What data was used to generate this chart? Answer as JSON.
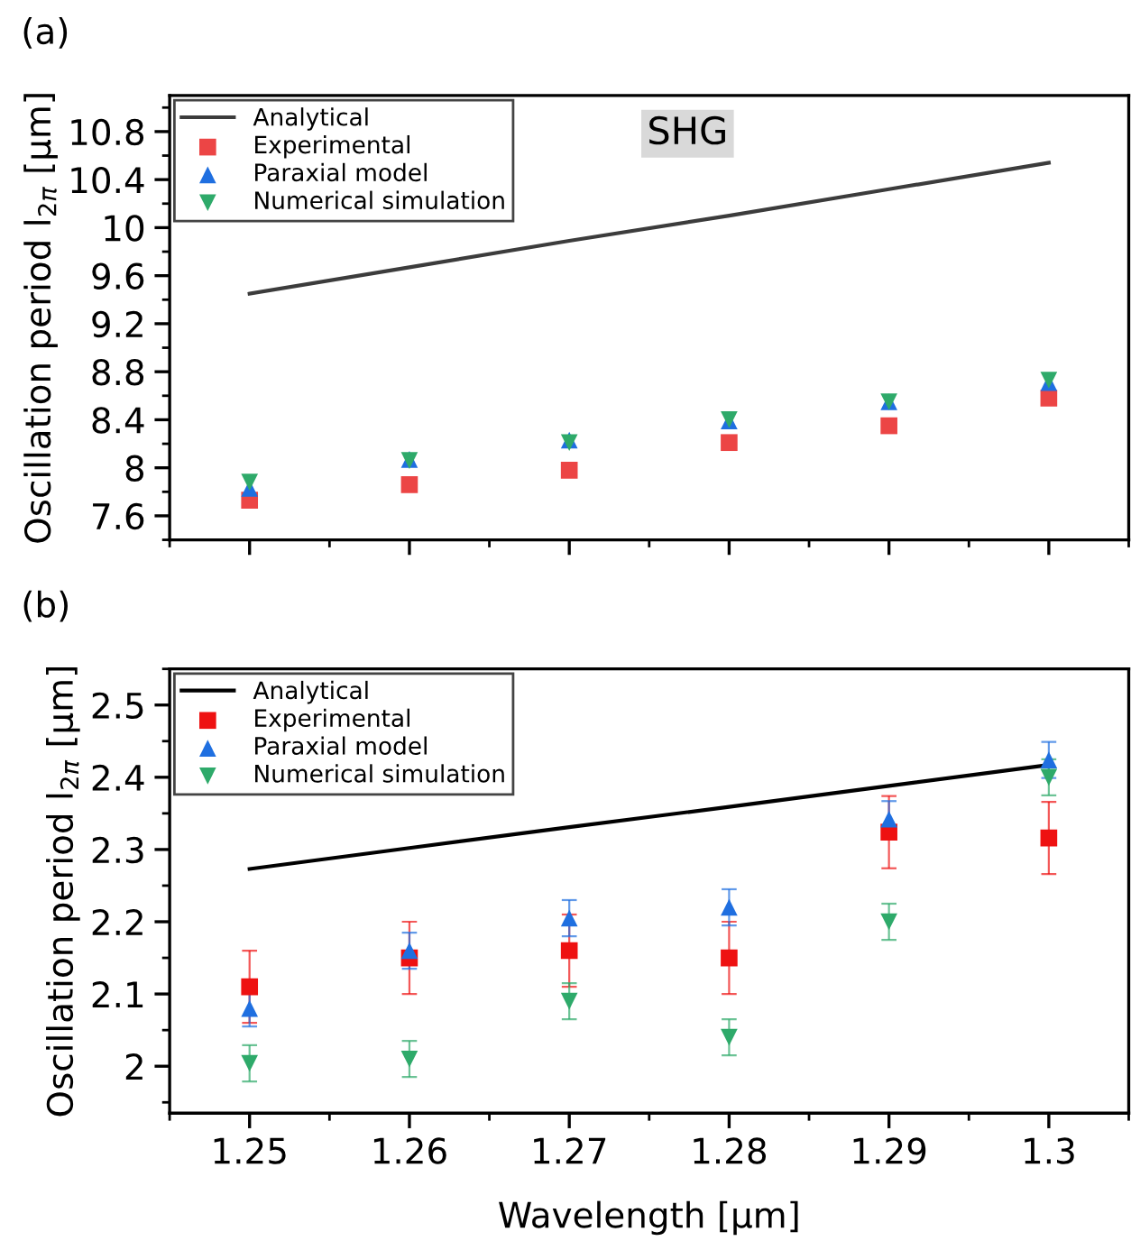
{
  "chart_data": [
    {
      "type": "scatter",
      "title": "(a)",
      "ylabel": "Oscillation period l$_{2π}$ [μm]",
      "annotations": [
        "SHG"
      ],
      "x": [
        1.25,
        1.26,
        1.27,
        1.28,
        1.29,
        1.3
      ],
      "series": [
        {
          "name": "Analytical",
          "type": "line",
          "color": "#3c3c3c",
          "values": [
            9.45,
            9.67,
            9.89,
            10.1,
            10.32,
            10.54
          ]
        },
        {
          "name": "Experimental",
          "color": "#ec4545",
          "marker": "square",
          "values": [
            7.73,
            7.86,
            7.98,
            8.21,
            8.35,
            8.58
          ]
        },
        {
          "name": "Paraxial model",
          "color": "#1f6fe0",
          "marker": "triangle",
          "values": [
            7.83,
            8.07,
            8.23,
            8.39,
            8.55,
            8.71
          ]
        },
        {
          "name": "Numerical simulation",
          "color": "#2eaa6a",
          "marker": "triangle_down",
          "values": [
            7.88,
            8.06,
            8.21,
            8.4,
            8.55,
            8.73
          ]
        }
      ],
      "xlim": [
        1.245,
        1.305
      ],
      "xticks": [
        1.25,
        1.26,
        1.27,
        1.28,
        1.29,
        1.3
      ],
      "ylim": [
        7.4,
        11.1
      ],
      "yticks": [
        7.6,
        8,
        8.4,
        8.8,
        9.2,
        9.6,
        10,
        10.4,
        10.8
      ],
      "tick_labels": "y",
      "legend": "top left",
      "grid": false
    },
    {
      "type": "scatter",
      "title": "(b)",
      "ylabel": "Oscillation period l$_{2π}$ [μm]",
      "xlabel": "Wavelength [μm]",
      "x": [
        1.25,
        1.26,
        1.27,
        1.28,
        1.29,
        1.3
      ],
      "series": [
        {
          "name": "Analytical",
          "type": "line",
          "color": "#000000",
          "values": [
            2.273,
            2.302,
            2.331,
            2.359,
            2.388,
            2.417
          ]
        },
        {
          "name": "Experimental",
          "color": "#ee1111",
          "marker": "square",
          "values": [
            2.11,
            2.15,
            2.16,
            2.15,
            2.324,
            2.316
          ],
          "errors": [
            0.05,
            0.05,
            0.05,
            0.05,
            0.05,
            0.05
          ]
        },
        {
          "name": "Paraxial model",
          "color": "#1f6fe0",
          "marker": "triangle",
          "values": [
            2.08,
            2.16,
            2.205,
            2.22,
            2.342,
            2.424
          ],
          "errors": [
            0.025,
            0.025,
            0.025,
            0.025,
            0.025,
            0.025
          ]
        },
        {
          "name": "Numerical simulation",
          "color": "#2eaa6a",
          "marker": "triangle_down",
          "values": [
            2.004,
            2.01,
            2.09,
            2.04,
            2.2,
            2.4
          ],
          "errors": [
            0.025,
            0.025,
            0.025,
            0.025,
            0.025,
            0.025
          ]
        }
      ],
      "xlim": [
        1.245,
        1.305
      ],
      "xticks": [
        1.25,
        1.26,
        1.27,
        1.28,
        1.29,
        1.3
      ],
      "ylim": [
        1.935,
        2.55
      ],
      "yticks": [
        2,
        2.1,
        2.2,
        2.3,
        2.4,
        2.5
      ],
      "legend": "top left",
      "grid": false
    }
  ]
}
